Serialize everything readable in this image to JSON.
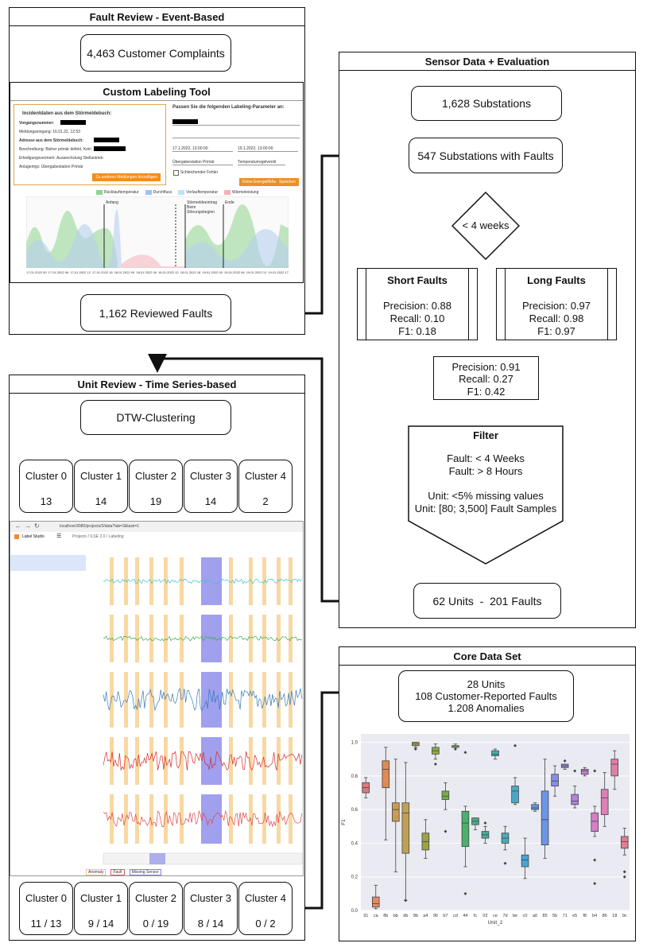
{
  "fault_review": {
    "title": "Fault Review - Event-Based",
    "complaints": "4,463 Customer Complaints",
    "tool_title": "Custom Labeling Tool",
    "tool": {
      "incident_header": "Incidentdaten aus dem Störmeldebuch:",
      "fields": [
        "Vorgangsnummer:",
        "Meldungseingang: 16.01.22, 12:53",
        "Adresse aus dem Störmeldebuch:",
        "Beschreibung: Bisher primär defekt. Kein",
        "Erledigungsvermerk: Auswechslung Stellantrieb",
        "Anlagentyp: Übergabestation Primär"
      ],
      "orange_left": "Zu anderen Meldungen hinzufügen",
      "params_header": "Passen Sie die folgenden Labeling-Parameter an:",
      "param_values": [
        "17.1.2022, 13:00:00",
        "19.1.2022, 13:00:00",
        "Übergabestation Primär",
        "Temperaturregelventil"
      ],
      "checkbox": "Schleichender Fehler",
      "btn_a": "Keine Energieflöße",
      "btn_b": "Speichen",
      "legend": [
        "Rücklauftemperatur",
        "Durchfluss",
        "Vorlauftemperatur",
        "Wärmeleistung"
      ],
      "markers": [
        "Anfang",
        "Störmeldeeintrag Beim Störungsbeginn",
        "Ende"
      ],
      "x_ticks": [
        "17.01.2022 00",
        "17.01.2022 06",
        "17.01.2022 12",
        "17.01.2022 18",
        "18.01.2022 00",
        "18.01.2022 06",
        "18.01.2022 12",
        "18.01.2022 18",
        "19.01.2022 00",
        "19.01.2022 06",
        "19.01.2022 12",
        "19.01.2022 17"
      ]
    },
    "reviewed": "1,162 Reviewed Faults"
  },
  "sensor_eval": {
    "title": "Sensor Data + Evaluation",
    "substations": "1,628 Substations",
    "with_faults": "547 Substations with Faults",
    "decision": "< 4 weeks",
    "short": {
      "title": "Short Faults",
      "precision": "Precision: 0.88",
      "recall": "Recall: 0.10",
      "f1": "F1: 0.18"
    },
    "long": {
      "title": "Long Faults",
      "precision": "Precision: 0.97",
      "recall": "Recall: 0.98",
      "f1": "F1: 0.97"
    },
    "combined": {
      "precision": "Precision: 0.91",
      "recall": "Recall: 0.27",
      "f1": "F1: 0.42"
    },
    "filter": {
      "title": "Filter",
      "l1": "Fault: < 4 Weeks",
      "l2": "Fault: > 8 Hours",
      "l3": "Unit: <5% missing values",
      "l4": "Unit: [80; 3,500] Fault Samples"
    },
    "units": "62 Units  -  201 Faults"
  },
  "unit_review": {
    "title": "Unit Review - Time Series-based",
    "dtw": "DTW-Clustering",
    "clusters_top": [
      {
        "name": "Cluster 0",
        "value": "13"
      },
      {
        "name": "Cluster 1",
        "value": "14"
      },
      {
        "name": "Cluster 2",
        "value": "19"
      },
      {
        "name": "Cluster 3",
        "value": "14"
      },
      {
        "name": "Cluster 4",
        "value": "2"
      }
    ],
    "clusters_bottom": [
      {
        "name": "Cluster 0",
        "value": "11 / 13"
      },
      {
        "name": "Cluster 1",
        "value": "9 / 14"
      },
      {
        "name": "Cluster 2",
        "value": "0 / 19"
      },
      {
        "name": "Cluster 3",
        "value": "8 / 14"
      },
      {
        "name": "Cluster 4",
        "value": "0 / 2"
      }
    ],
    "studio": {
      "url": "localhost:8080/projects/3/data?tab=3&task=1",
      "app": "Label Studio",
      "breadcrumb": "Projects / ILSE 2.0 / Labeling",
      "legend": [
        "Anomaly",
        "Fault",
        "Missing Sensor"
      ],
      "colors": {
        "anomaly": "#f5c77a",
        "missing": "#8080e8"
      }
    }
  },
  "core": {
    "title": "Core Data Set",
    "l1": "28 Units",
    "l2": "108 Customer-Reported Faults",
    "l3": "1.208 Anomalies"
  },
  "chart_data": {
    "type": "box",
    "xlabel": "Unit_2",
    "ylabel": "F1",
    "ylim": [
      0,
      1.05
    ],
    "yticks": [
      "0.0",
      "0.2",
      "0.4",
      "0.6",
      "0.8",
      "1.0"
    ],
    "categories": [
      "91",
      "ca",
      "8b",
      "bb",
      "db",
      "9b",
      "a4",
      "96",
      "b7",
      "cd",
      "44",
      "fc",
      "02",
      "ce",
      "7d",
      "be",
      "c0",
      "a0",
      "85",
      "5b",
      "71",
      "e5",
      "f8",
      "b4",
      "86",
      "18",
      "9c"
    ],
    "boxes": [
      {
        "q1": 0.7,
        "med": 0.73,
        "q3": 0.76,
        "lo": 0.67,
        "hi": 0.79,
        "color": "#e0777a"
      },
      {
        "q1": 0.02,
        "med": 0.04,
        "q3": 0.08,
        "lo": 0.01,
        "hi": 0.15,
        "color": "#e38a66"
      },
      {
        "q1": 0.73,
        "med": 0.84,
        "q3": 0.89,
        "lo": 0.42,
        "hi": 0.97,
        "color": "#de8b56"
      },
      {
        "q1": 0.53,
        "med": 0.6,
        "q3": 0.64,
        "lo": 0.23,
        "hi": 0.9,
        "color": "#c99c55"
      },
      {
        "q1": 0.34,
        "med": 0.58,
        "q3": 0.64,
        "lo": 0.06,
        "hi": 0.88,
        "color": "#bfa156"
      },
      {
        "q1": 0.98,
        "med": 0.99,
        "q3": 1.0,
        "lo": 0.97,
        "hi": 1.0,
        "color": "#b0a652"
      },
      {
        "q1": 0.36,
        "med": 0.41,
        "q3": 0.46,
        "lo": 0.31,
        "hi": 0.54,
        "color": "#9ea244"
      },
      {
        "q1": 0.93,
        "med": 0.95,
        "q3": 0.97,
        "lo": 0.9,
        "hi": 0.99,
        "color": "#8dab47"
      },
      {
        "q1": 0.66,
        "med": 0.68,
        "q3": 0.71,
        "lo": 0.6,
        "hi": 0.76,
        "color": "#79ad4a"
      },
      {
        "q1": 0.97,
        "med": 0.98,
        "q3": 0.98,
        "lo": 0.97,
        "hi": 0.99,
        "color": "#5fb05a"
      },
      {
        "q1": 0.38,
        "med": 0.52,
        "q3": 0.59,
        "lo": 0.26,
        "hi": 0.62,
        "color": "#4bb06c"
      },
      {
        "q1": 0.51,
        "med": 0.53,
        "q3": 0.55,
        "lo": 0.48,
        "hi": 0.55,
        "color": "#47ae84"
      },
      {
        "q1": 0.43,
        "med": 0.45,
        "q3": 0.47,
        "lo": 0.4,
        "hi": 0.5,
        "color": "#48ad98"
      },
      {
        "q1": 0.92,
        "med": 0.93,
        "q3": 0.95,
        "lo": 0.9,
        "hi": 0.96,
        "color": "#48acab"
      },
      {
        "q1": 0.4,
        "med": 0.43,
        "q3": 0.46,
        "lo": 0.36,
        "hi": 0.5,
        "color": "#4aabb9"
      },
      {
        "q1": 0.64,
        "med": 0.71,
        "q3": 0.74,
        "lo": 0.63,
        "hi": 0.79,
        "color": "#4aa8c6"
      },
      {
        "q1": 0.26,
        "med": 0.3,
        "q3": 0.33,
        "lo": 0.19,
        "hi": 0.43,
        "color": "#4aa3d4"
      },
      {
        "q1": 0.6,
        "med": 0.61,
        "q3": 0.63,
        "lo": 0.59,
        "hi": 0.64,
        "color": "#5a9ce0"
      },
      {
        "q1": 0.39,
        "med": 0.54,
        "q3": 0.71,
        "lo": 0.31,
        "hi": 0.9,
        "color": "#6c95e6"
      },
      {
        "q1": 0.74,
        "med": 0.77,
        "q3": 0.81,
        "lo": 0.68,
        "hi": 0.86,
        "color": "#868ee8"
      },
      {
        "q1": 0.85,
        "med": 0.86,
        "q3": 0.87,
        "lo": 0.84,
        "hi": 0.87,
        "color": "#9c85e3"
      },
      {
        "q1": 0.63,
        "med": 0.65,
        "q3": 0.69,
        "lo": 0.61,
        "hi": 0.74,
        "color": "#b281dd"
      },
      {
        "q1": 0.81,
        "med": 0.83,
        "q3": 0.84,
        "lo": 0.8,
        "hi": 0.85,
        "color": "#c67fd4"
      },
      {
        "q1": 0.47,
        "med": 0.53,
        "q3": 0.58,
        "lo": 0.44,
        "hi": 0.62,
        "color": "#d47fc7"
      },
      {
        "q1": 0.57,
        "med": 0.67,
        "q3": 0.72,
        "lo": 0.5,
        "hi": 0.82,
        "color": "#de7fb8"
      },
      {
        "q1": 0.8,
        "med": 0.87,
        "q3": 0.9,
        "lo": 0.72,
        "hi": 0.95,
        "color": "#e27ea8"
      },
      {
        "q1": 0.37,
        "med": 0.41,
        "q3": 0.44,
        "lo": 0.33,
        "hi": 0.49,
        "color": "#e47d92"
      }
    ],
    "outliers": [
      [
        4,
        0.06
      ],
      [
        5,
        0.96
      ],
      [
        7,
        0.87
      ],
      [
        8,
        0.47
      ],
      [
        9,
        0.96
      ],
      [
        10,
        0.1
      ],
      [
        10,
        0.94
      ],
      [
        12,
        0.52
      ],
      [
        14,
        0.28
      ],
      [
        15,
        0.98
      ],
      [
        20,
        0.89
      ],
      [
        21,
        0.83
      ],
      [
        23,
        0.3
      ],
      [
        23,
        0.16
      ],
      [
        23,
        0.83
      ],
      [
        26,
        0.23
      ],
      [
        26,
        0.2
      ]
    ],
    "grid": true
  }
}
